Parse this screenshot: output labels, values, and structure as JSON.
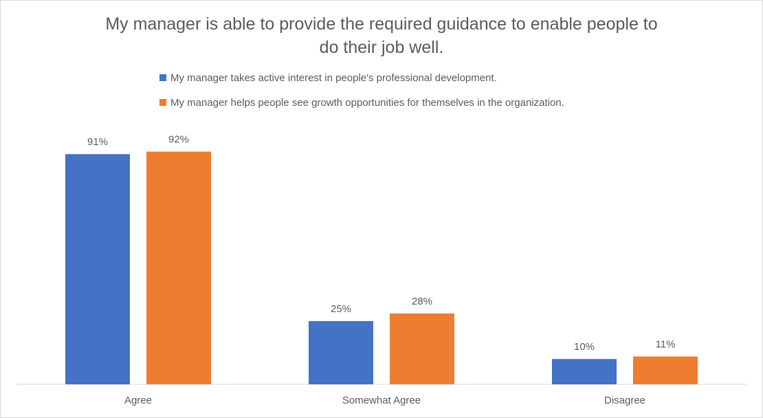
{
  "chart_data": {
    "type": "bar",
    "title_lines": [
      "My manager is able to provide the required guidance to  enable people to",
      "do their job well."
    ],
    "categories": [
      "Agree",
      "Somewhat Agree",
      "Disagree"
    ],
    "series": [
      {
        "name": "My manager takes active interest in people's professional development.",
        "color": "#4472C4",
        "values": [
          91,
          25,
          10
        ],
        "labels": [
          "91%",
          "25%",
          "10%"
        ]
      },
      {
        "name": "My manager helps people see growth opportunities for themselves in the organization.",
        "color": "#ED7D31",
        "values": [
          92,
          28,
          11
        ],
        "labels": [
          "92%",
          "28%",
          "11%"
        ]
      }
    ],
    "ylim": [
      0,
      100
    ],
    "grid": false,
    "legend_position": "top"
  }
}
